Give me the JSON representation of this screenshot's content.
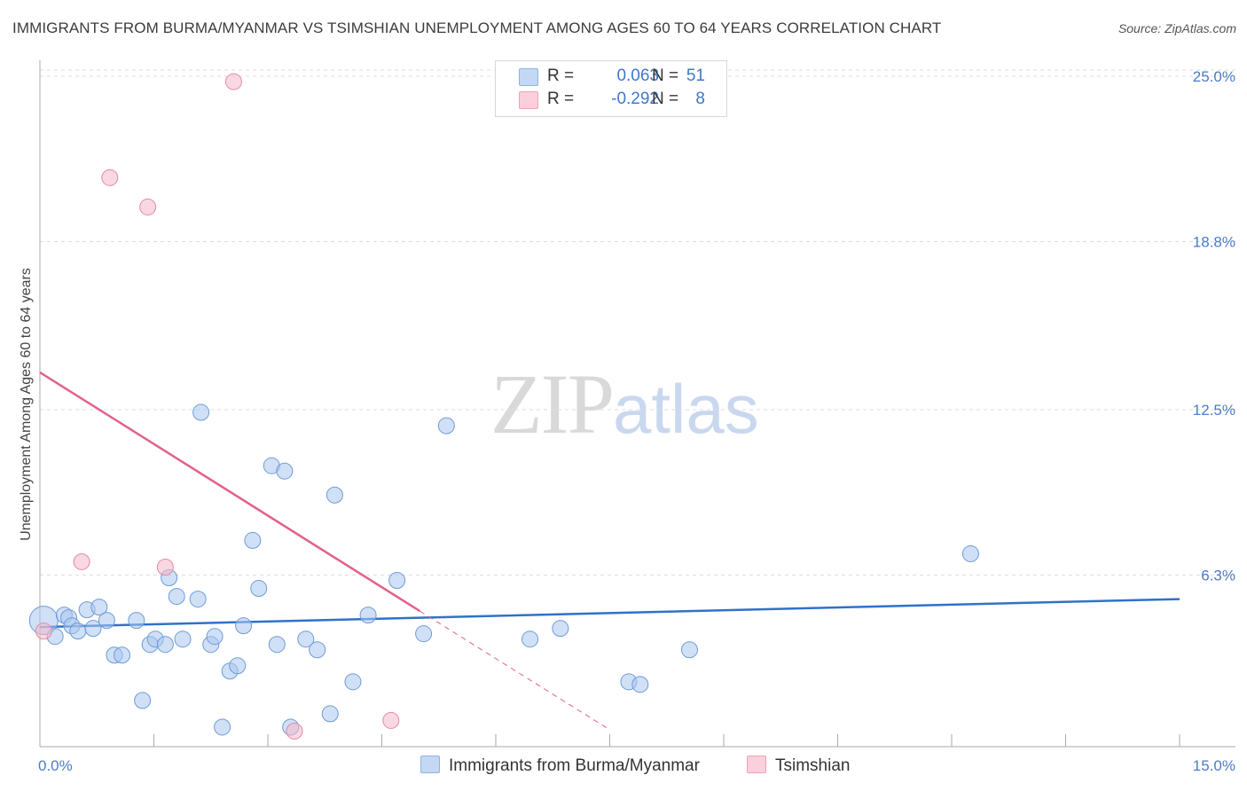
{
  "header": {
    "title": "IMMIGRANTS FROM BURMA/MYANMAR VS TSIMSHIAN UNEMPLOYMENT AMONG AGES 60 TO 64 YEARS CORRELATION CHART",
    "source": "Source: ZipAtlas.com"
  },
  "watermark": {
    "zip": "ZIP",
    "atlas": "atlas"
  },
  "legend": {
    "rows": [
      {
        "r_label": "R =",
        "r_value": "0.063",
        "n_label": "N =",
        "n_value": "51",
        "color": "#a9c6ef"
      },
      {
        "r_label": "R =",
        "r_value": "-0.292",
        "n_label": "N =",
        "n_value": "8",
        "color": "#f5b8c8"
      }
    ]
  },
  "bottom_legend": {
    "series1": "Immigrants from Burma/Myanmar",
    "series2": "Tsimshian"
  },
  "chart_data": {
    "type": "scatter",
    "title": "IMMIGRANTS FROM BURMA/MYANMAR VS TSIMSHIAN UNEMPLOYMENT AMONG AGES 60 TO 64 YEARS CORRELATION CHART",
    "xlabel": "",
    "ylabel": "Unemployment Among Ages 60 to 64 years",
    "xlim": [
      0,
      15
    ],
    "ylim": [
      0,
      25.6
    ],
    "x_tick_labels": [
      "0.0%",
      "15.0%"
    ],
    "y_ticks": [
      6.3,
      12.5,
      18.8,
      25.0
    ],
    "y_tick_labels": [
      "6.3%",
      "12.5%",
      "18.8%",
      "25.0%"
    ],
    "series": [
      {
        "name": "Immigrants from Burma/Myanmar",
        "color": "#a9c6ef",
        "stroke": "#6f9bd6",
        "trend": {
          "x0": 0.0,
          "y0": 4.35,
          "x1": 15.0,
          "y1": 5.4,
          "color": "#2f72c9"
        },
        "points": [
          [
            0.05,
            4.6,
            16
          ],
          [
            0.2,
            4.0,
            9
          ],
          [
            0.32,
            4.8,
            9
          ],
          [
            0.38,
            4.7,
            9
          ],
          [
            0.42,
            4.4,
            9
          ],
          [
            0.5,
            4.2,
            9
          ],
          [
            0.62,
            5.0,
            9
          ],
          [
            0.7,
            4.3,
            9
          ],
          [
            0.78,
            5.1,
            9
          ],
          [
            0.88,
            4.6,
            9
          ],
          [
            0.98,
            3.3,
            9
          ],
          [
            1.08,
            3.3,
            9
          ],
          [
            1.27,
            4.6,
            9
          ],
          [
            1.35,
            1.6,
            9
          ],
          [
            1.45,
            3.7,
            9
          ],
          [
            1.52,
            3.9,
            9
          ],
          [
            1.65,
            3.7,
            9
          ],
          [
            1.7,
            6.2,
            9
          ],
          [
            1.8,
            5.5,
            9
          ],
          [
            1.88,
            3.9,
            9
          ],
          [
            2.08,
            5.4,
            9
          ],
          [
            2.12,
            12.4,
            9
          ],
          [
            2.25,
            3.7,
            9
          ],
          [
            2.3,
            4.0,
            9
          ],
          [
            2.4,
            0.6,
            9
          ],
          [
            2.5,
            2.7,
            9
          ],
          [
            2.6,
            2.9,
            9
          ],
          [
            2.68,
            4.4,
            9
          ],
          [
            2.8,
            7.6,
            9
          ],
          [
            2.88,
            5.8,
            9
          ],
          [
            3.05,
            10.4,
            9
          ],
          [
            3.12,
            3.7,
            9
          ],
          [
            3.22,
            10.2,
            9
          ],
          [
            3.3,
            0.6,
            9
          ],
          [
            3.5,
            3.9,
            9
          ],
          [
            3.65,
            3.5,
            9
          ],
          [
            3.82,
            1.1,
            9
          ],
          [
            3.88,
            9.3,
            9
          ],
          [
            4.12,
            2.3,
            9
          ],
          [
            4.32,
            4.8,
            9
          ],
          [
            4.7,
            6.1,
            9
          ],
          [
            5.05,
            4.1,
            9
          ],
          [
            5.35,
            11.9,
            9
          ],
          [
            6.45,
            3.9,
            9
          ],
          [
            6.85,
            4.3,
            9
          ],
          [
            7.75,
            2.3,
            9
          ],
          [
            7.9,
            2.2,
            9
          ],
          [
            8.55,
            3.5,
            9
          ],
          [
            12.25,
            7.1,
            9
          ]
        ]
      },
      {
        "name": "Tsimshian",
        "color": "#f5b8c8",
        "stroke": "#e38aa4",
        "trend": {
          "x0": 0.0,
          "y0": 13.9,
          "x1": 5.0,
          "y1": 4.95,
          "dash_x1": 7.5,
          "dash_y1": 0.5,
          "color": "#e2608a"
        },
        "points": [
          [
            0.05,
            4.2,
            9
          ],
          [
            0.55,
            6.8,
            9
          ],
          [
            0.92,
            21.2,
            9
          ],
          [
            1.42,
            20.1,
            9
          ],
          [
            1.65,
            6.6,
            9
          ],
          [
            2.55,
            24.8,
            9
          ],
          [
            3.35,
            0.45,
            9
          ],
          [
            4.62,
            0.85,
            9
          ]
        ]
      }
    ]
  }
}
